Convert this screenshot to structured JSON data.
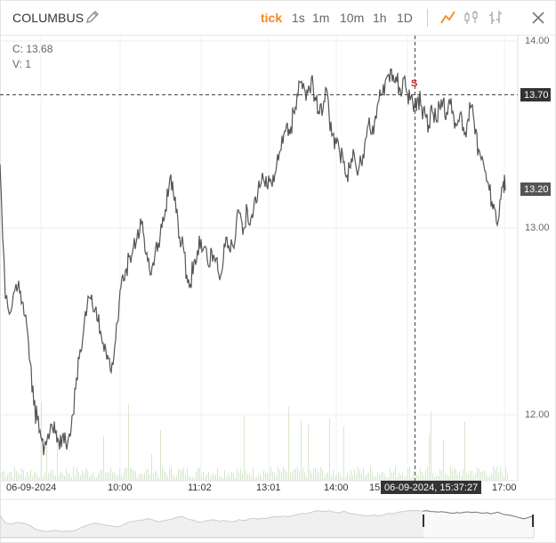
{
  "toolbar": {
    "symbol": "COLUMBUS",
    "intervals": [
      "tick",
      "1s",
      "1m",
      "10m",
      "1h",
      "1D"
    ],
    "active_interval": "tick",
    "icons": [
      "pencil-icon",
      "line-chart-icon",
      "candlestick-icon",
      "ohlc-bars-icon",
      "close-icon"
    ],
    "accent_color": "#f5891e"
  },
  "legend": {
    "close_label": "C: 13.68",
    "volume_label": "V: 1"
  },
  "chart_data": {
    "type": "line",
    "ylim": [
      11.65,
      14.0
    ],
    "y_ticks": [
      "14.00",
      "13.00",
      "12.00"
    ],
    "x_ticks": [
      "06-09-2024",
      "10:00",
      "11:02",
      "13:01",
      "14:00",
      "15:",
      "17:00"
    ],
    "crosshair": {
      "x_label": "06-09-2024, 15:37:27",
      "y_label": "13.70"
    },
    "last_price_label": "13.20",
    "marker": "S",
    "line_color": "#555555",
    "volume_color": "#d6e6cc",
    "series_points": [
      [
        0,
        13.34
      ],
      [
        6,
        12.62
      ],
      [
        12,
        12.55
      ],
      [
        18,
        12.7
      ],
      [
        22,
        12.65
      ],
      [
        26,
        12.6
      ],
      [
        30,
        12.48
      ],
      [
        34,
        12.28
      ],
      [
        38,
        12.05
      ],
      [
        42,
        11.97
      ],
      [
        46,
        11.88
      ],
      [
        50,
        11.83
      ],
      [
        54,
        11.9
      ],
      [
        58,
        11.95
      ],
      [
        62,
        11.9
      ],
      [
        66,
        11.86
      ],
      [
        70,
        11.88
      ],
      [
        74,
        11.85
      ],
      [
        78,
        11.9
      ],
      [
        82,
        12.0
      ],
      [
        86,
        12.2
      ],
      [
        90,
        12.35
      ],
      [
        94,
        12.45
      ],
      [
        98,
        12.58
      ],
      [
        102,
        12.62
      ],
      [
        106,
        12.55
      ],
      [
        110,
        12.5
      ],
      [
        114,
        12.42
      ],
      [
        118,
        12.38
      ],
      [
        122,
        12.3
      ],
      [
        126,
        12.28
      ],
      [
        130,
        12.4
      ],
      [
        134,
        12.6
      ],
      [
        138,
        12.75
      ],
      [
        142,
        12.78
      ],
      [
        146,
        12.85
      ],
      [
        150,
        12.9
      ],
      [
        154,
        12.95
      ],
      [
        158,
        13.05
      ],
      [
        162,
        12.95
      ],
      [
        166,
        12.82
      ],
      [
        170,
        12.75
      ],
      [
        174,
        12.85
      ],
      [
        178,
        12.92
      ],
      [
        182,
        13.0
      ],
      [
        186,
        13.1
      ],
      [
        190,
        13.22
      ],
      [
        194,
        13.25
      ],
      [
        198,
        13.08
      ],
      [
        202,
        12.95
      ],
      [
        206,
        12.9
      ],
      [
        210,
        12.75
      ],
      [
        214,
        12.7
      ],
      [
        218,
        12.82
      ],
      [
        222,
        12.88
      ],
      [
        226,
        12.94
      ],
      [
        230,
        12.9
      ],
      [
        234,
        12.8
      ],
      [
        238,
        12.88
      ],
      [
        242,
        12.82
      ],
      [
        246,
        12.75
      ],
      [
        250,
        12.78
      ],
      [
        254,
        12.95
      ],
      [
        258,
        12.88
      ],
      [
        262,
        12.9
      ],
      [
        266,
        13.05
      ],
      [
        270,
        13.08
      ],
      [
        274,
        13.0
      ],
      [
        278,
        13.1
      ],
      [
        282,
        13.05
      ],
      [
        286,
        13.15
      ],
      [
        290,
        13.2
      ],
      [
        294,
        13.25
      ],
      [
        298,
        13.22
      ],
      [
        302,
        13.28
      ],
      [
        306,
        13.22
      ],
      [
        310,
        13.3
      ],
      [
        314,
        13.4
      ],
      [
        318,
        13.45
      ],
      [
        322,
        13.55
      ],
      [
        326,
        13.5
      ],
      [
        330,
        13.62
      ],
      [
        334,
        13.72
      ],
      [
        338,
        13.78
      ],
      [
        342,
        13.75
      ],
      [
        346,
        13.72
      ],
      [
        350,
        13.8
      ],
      [
        354,
        13.7
      ],
      [
        358,
        13.62
      ],
      [
        362,
        13.6
      ],
      [
        366,
        13.75
      ],
      [
        370,
        13.6
      ],
      [
        374,
        13.5
      ],
      [
        378,
        13.45
      ],
      [
        382,
        13.4
      ],
      [
        386,
        13.35
      ],
      [
        390,
        13.28
      ],
      [
        394,
        13.32
      ],
      [
        398,
        13.4
      ],
      [
        402,
        13.28
      ],
      [
        406,
        13.35
      ],
      [
        410,
        13.45
      ],
      [
        414,
        13.55
      ],
      [
        418,
        13.5
      ],
      [
        422,
        13.6
      ],
      [
        426,
        13.68
      ],
      [
        430,
        13.72
      ],
      [
        434,
        13.8
      ],
      [
        438,
        13.78
      ],
      [
        442,
        13.82
      ],
      [
        446,
        13.78
      ],
      [
        450,
        13.74
      ],
      [
        454,
        13.8
      ],
      [
        458,
        13.72
      ],
      [
        462,
        13.7
      ],
      [
        466,
        13.66
      ],
      [
        470,
        13.7
      ],
      [
        474,
        13.65
      ],
      [
        478,
        13.6
      ],
      [
        482,
        13.55
      ],
      [
        486,
        13.62
      ],
      [
        490,
        13.58
      ],
      [
        494,
        13.65
      ],
      [
        498,
        13.68
      ],
      [
        502,
        13.62
      ],
      [
        506,
        13.66
      ],
      [
        510,
        13.6
      ],
      [
        514,
        13.55
      ],
      [
        518,
        13.62
      ],
      [
        522,
        13.5
      ],
      [
        526,
        13.58
      ],
      [
        530,
        13.65
      ],
      [
        534,
        13.5
      ],
      [
        538,
        13.42
      ],
      [
        542,
        13.38
      ],
      [
        546,
        13.3
      ],
      [
        550,
        13.2
      ],
      [
        554,
        13.1
      ],
      [
        558,
        13.03
      ],
      [
        562,
        13.15
      ],
      [
        566,
        13.25
      ],
      [
        568,
        13.2
      ]
    ]
  }
}
